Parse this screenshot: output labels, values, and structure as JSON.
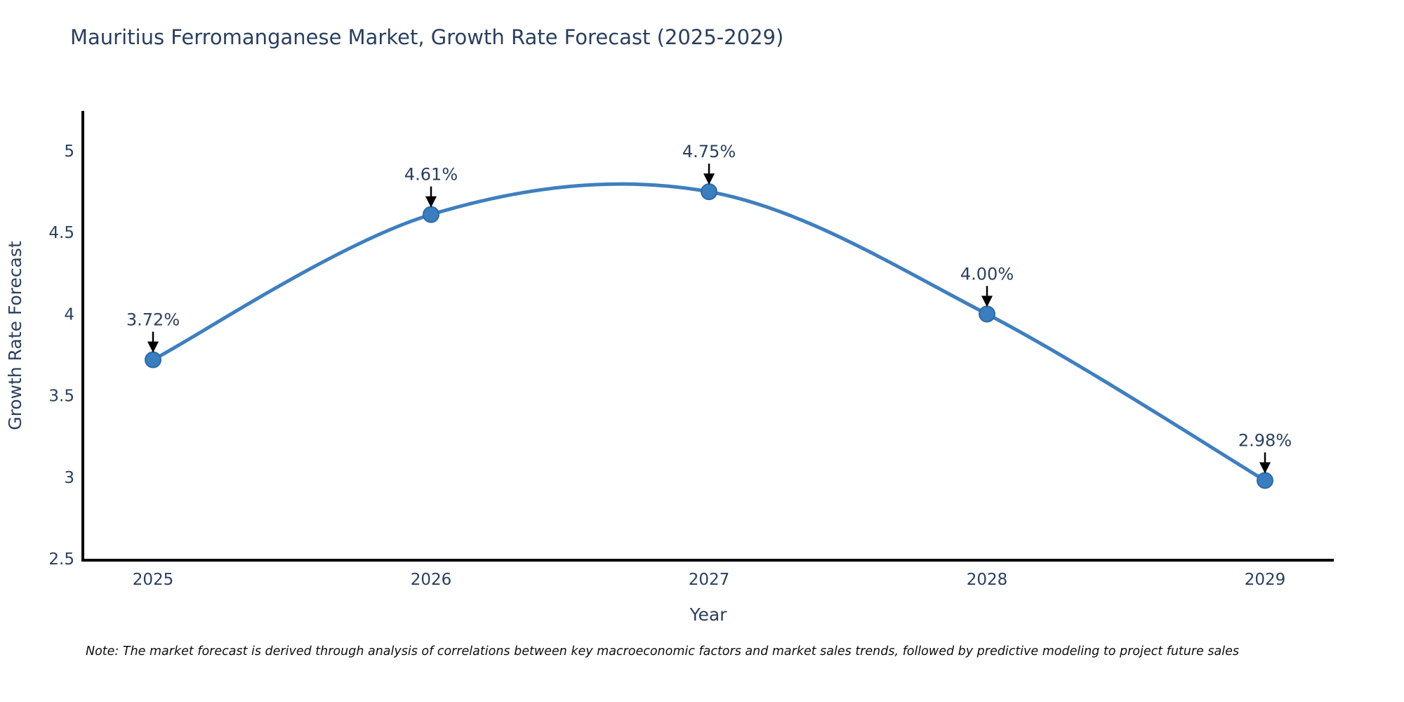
{
  "title": "Mauritius Ferromanganese Market, Growth Rate Forecast (2025-2029)",
  "note": "Note: The market forecast is derived through analysis of correlations between key macroeconomic factors and market sales trends, followed by predictive modeling to project future sales",
  "chart_data": {
    "type": "line",
    "title": "Mauritius Ferromanganese Market, Growth Rate Forecast (2025-2029)",
    "xlabel": "Year",
    "ylabel": "Growth Rate Forecast",
    "x": [
      2025,
      2026,
      2027,
      2028,
      2029
    ],
    "series": [
      {
        "name": "Growth Rate Forecast",
        "values": [
          3.72,
          4.61,
          4.75,
          4.0,
          2.98
        ]
      }
    ],
    "point_labels": [
      "3.72%",
      "4.61%",
      "4.75%",
      "4.00%",
      "2.98%"
    ],
    "xticks": [
      "2025",
      "2026",
      "2027",
      "2028",
      "2029"
    ],
    "yticks": [
      2.5,
      3,
      3.5,
      4,
      4.5,
      5
    ],
    "xlim": [
      2024.75,
      2029.25
    ],
    "ylim": [
      2.5,
      5.25
    ],
    "grid": false,
    "legend_position": "none",
    "line_shape": "spline",
    "colors": {
      "line": "#3f7fbf",
      "marker_fill": "#3a7ebf",
      "marker_edge": "#2e6ba4",
      "axis_line": "#000000",
      "tick_text": "#2a3f5f",
      "annotation_text": "#2a3f5f",
      "annotation_arrow": "#000000"
    }
  }
}
